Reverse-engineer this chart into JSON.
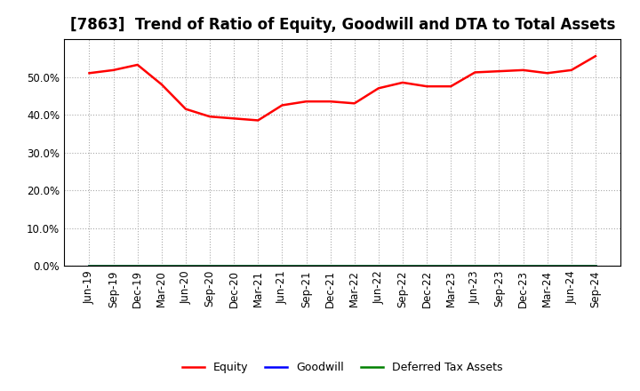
{
  "title": "[7863]  Trend of Ratio of Equity, Goodwill and DTA to Total Assets",
  "x_labels": [
    "Jun-19",
    "Sep-19",
    "Dec-19",
    "Mar-20",
    "Jun-20",
    "Sep-20",
    "Dec-20",
    "Mar-21",
    "Jun-21",
    "Sep-21",
    "Dec-21",
    "Mar-22",
    "Jun-22",
    "Sep-22",
    "Dec-22",
    "Mar-23",
    "Jun-23",
    "Sep-23",
    "Dec-23",
    "Mar-24",
    "Jun-24",
    "Sep-24"
  ],
  "equity": [
    51.0,
    51.8,
    53.2,
    48.0,
    41.5,
    39.5,
    39.0,
    38.5,
    42.5,
    43.5,
    43.5,
    43.0,
    47.0,
    48.5,
    47.5,
    47.5,
    51.2,
    51.5,
    51.8,
    51.0,
    51.8,
    55.5
  ],
  "goodwill": [
    0.0,
    0.0,
    0.0,
    0.0,
    0.0,
    0.0,
    0.0,
    0.0,
    0.0,
    0.0,
    0.0,
    0.0,
    0.0,
    0.0,
    0.0,
    0.0,
    0.0,
    0.0,
    0.0,
    0.0,
    0.0,
    0.0
  ],
  "dta": [
    0.0,
    0.0,
    0.0,
    0.0,
    0.0,
    0.0,
    0.0,
    0.0,
    0.0,
    0.0,
    0.0,
    0.0,
    0.0,
    0.0,
    0.0,
    0.0,
    0.0,
    0.0,
    0.0,
    0.0,
    0.0,
    0.0
  ],
  "equity_color": "#FF0000",
  "goodwill_color": "#0000FF",
  "dta_color": "#008000",
  "ylim": [
    0,
    60
  ],
  "yticks": [
    0,
    10,
    20,
    30,
    40,
    50
  ],
  "background_color": "#FFFFFF",
  "plot_bg_color": "#FFFFFF",
  "grid_color": "#AAAAAA",
  "title_fontsize": 12,
  "tick_fontsize": 8.5,
  "legend_labels": [
    "Equity",
    "Goodwill",
    "Deferred Tax Assets"
  ]
}
